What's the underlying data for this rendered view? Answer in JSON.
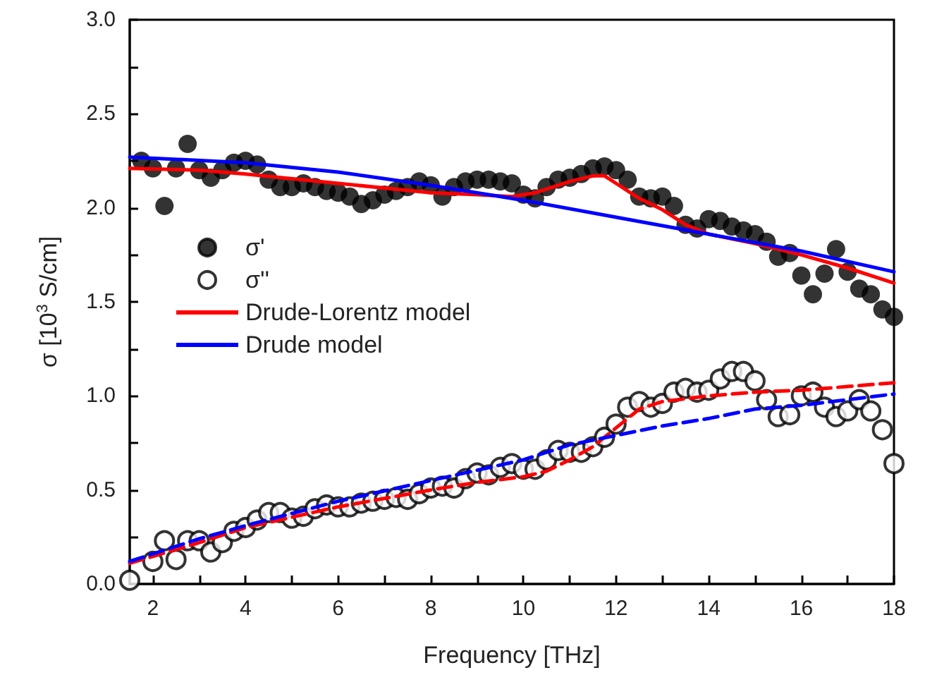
{
  "chart_data": {
    "type": "scatter",
    "xlabel": "Frequency [THz]",
    "ylabel": "σ [10$^{3}$ S/cm]",
    "xlim": [
      1.5,
      18
    ],
    "ylim": [
      0,
      3
    ],
    "xticks": [
      2,
      {
        "value": 3,
        "label": null
      },
      4,
      {
        "value": 5,
        "label": null
      },
      6,
      {
        "value": 7,
        "label": null
      },
      8,
      {
        "value": 9,
        "label": null
      },
      10,
      {
        "value": 11,
        "label": null
      },
      12,
      {
        "value": 13,
        "label": null
      },
      14,
      {
        "value": 15,
        "label": null
      },
      16,
      {
        "value": 17,
        "label": null
      },
      18
    ],
    "yticks": [
      {
        "value": 0,
        "label": "0.0"
      },
      {
        "value": 0.25,
        "label": null
      },
      {
        "value": 0.5,
        "label": "0.5"
      },
      {
        "value": 0.75,
        "label": null
      },
      {
        "value": 1,
        "label": "1.0"
      },
      {
        "value": 1.25,
        "label": null
      },
      {
        "value": 1.5,
        "label": "1.5"
      },
      {
        "value": 1.75,
        "label": null
      },
      {
        "value": 2,
        "label": "2.0"
      },
      {
        "value": 2.25,
        "label": null
      },
      {
        "value": 2.5,
        "label": "2.5"
      },
      {
        "value": 2.75,
        "label": null
      },
      {
        "value": 3,
        "label": "3.0"
      }
    ],
    "grid": false,
    "legend": "center left",
    "series": [
      {
        "name": "σ'",
        "marker": "circle",
        "color": "#000000",
        "x": [
          1.75,
          2,
          2.25,
          2.5,
          2.75,
          3,
          3.25,
          3.5,
          3.75,
          4,
          4.25,
          4.5,
          4.75,
          5,
          5.25,
          5.5,
          5.75,
          6,
          6.25,
          6.5,
          6.75,
          7,
          7.25,
          7.5,
          7.75,
          8,
          8.25,
          8.5,
          8.75,
          9,
          9.25,
          9.5,
          9.75,
          10,
          10.25,
          10.5,
          10.75,
          11,
          11.25,
          11.5,
          11.75,
          12,
          12.25,
          12.5,
          12.75,
          13,
          13.25,
          13.5,
          13.75,
          14,
          14.25,
          14.5,
          14.75,
          15,
          15.25,
          15.5,
          15.75,
          16,
          16.25,
          16.5,
          16.75,
          17,
          17.25,
          17.5,
          17.75,
          18
        ],
        "values": [
          2.25,
          2.21,
          2.01,
          2.21,
          2.34,
          2.2,
          2.16,
          2.2,
          2.24,
          2.25,
          2.23,
          2.15,
          2.11,
          2.11,
          2.13,
          2.11,
          2.09,
          2.08,
          2.06,
          2.02,
          2.04,
          2.07,
          2.09,
          2.11,
          2.14,
          2.12,
          2.06,
          2.11,
          2.14,
          2.15,
          2.15,
          2.14,
          2.13,
          2.07,
          2.05,
          2.11,
          2.15,
          2.16,
          2.18,
          2.21,
          2.22,
          2.2,
          2.15,
          2.06,
          2.05,
          2.06,
          2.01,
          1.91,
          1.89,
          1.94,
          1.93,
          1.9,
          1.88,
          1.86,
          1.82,
          1.74,
          1.76,
          1.64,
          1.54,
          1.65,
          1.78,
          1.66,
          1.57,
          1.54,
          1.46,
          1.42
        ]
      },
      {
        "name": "σ''",
        "marker": "open circle",
        "color": "#000000",
        "x": [
          1.5,
          2,
          2.25,
          2.5,
          2.75,
          3,
          3.25,
          3.5,
          3.75,
          4,
          4.25,
          4.5,
          4.75,
          5,
          5.25,
          5.5,
          5.75,
          6,
          6.25,
          6.5,
          6.75,
          7,
          7.25,
          7.5,
          7.75,
          8,
          8.25,
          8.5,
          8.75,
          9,
          9.25,
          9.5,
          9.75,
          10,
          10.25,
          10.5,
          10.75,
          11,
          11.25,
          11.5,
          11.75,
          12,
          12.25,
          12.5,
          12.75,
          13,
          13.25,
          13.5,
          13.75,
          14,
          14.25,
          14.5,
          14.75,
          15,
          15.25,
          15.5,
          15.75,
          16,
          16.25,
          16.5,
          16.75,
          17,
          17.25,
          17.5,
          17.75,
          18
        ],
        "values": [
          0.02,
          0.12,
          0.23,
          0.13,
          0.23,
          0.23,
          0.17,
          0.22,
          0.28,
          0.3,
          0.34,
          0.38,
          0.38,
          0.35,
          0.36,
          0.4,
          0.42,
          0.41,
          0.41,
          0.43,
          0.44,
          0.45,
          0.46,
          0.45,
          0.48,
          0.51,
          0.52,
          0.51,
          0.56,
          0.59,
          0.58,
          0.62,
          0.64,
          0.61,
          0.61,
          0.66,
          0.71,
          0.7,
          0.7,
          0.73,
          0.78,
          0.85,
          0.94,
          0.97,
          0.94,
          0.96,
          1.02,
          1.04,
          1.02,
          1.03,
          1.09,
          1.13,
          1.13,
          1.08,
          0.98,
          0.89,
          0.9,
          1.0,
          1.02,
          0.94,
          0.89,
          0.92,
          0.98,
          0.92,
          0.82,
          0.64
        ]
      },
      {
        "name": "Drude-Lorentz model",
        "type": "line",
        "marker": "none",
        "line_style": "solid",
        "color": "#ff0000",
        "x": [
          1.5,
          3,
          4,
          6,
          8,
          9,
          9.75,
          10.25,
          11,
          11.5,
          11.75,
          12,
          12.5,
          13,
          13.5,
          14,
          15,
          16,
          17,
          18
        ],
        "values": [
          2.21,
          2.2,
          2.18,
          2.13,
          2.08,
          2.07,
          2.06,
          2.08,
          2.14,
          2.17,
          2.17,
          2.13,
          2.05,
          1.99,
          1.91,
          1.86,
          1.81,
          1.75,
          1.68,
          1.6
        ]
      },
      {
        "name": "Drude model",
        "type": "line",
        "marker": "none",
        "line_style": "solid",
        "color": "#0000ff",
        "x": [
          1.5,
          4,
          6,
          8,
          10,
          12,
          14,
          16,
          18
        ],
        "values": [
          2.27,
          2.24,
          2.19,
          2.12,
          2.04,
          1.95,
          1.86,
          1.77,
          1.66
        ]
      },
      {
        "type": "line",
        "marker": "none",
        "line_style": "dashed",
        "color": "#ff0000",
        "x": [
          1.5,
          3,
          4,
          6,
          8,
          9,
          10,
          10.5,
          11,
          11.5,
          12,
          12.5,
          13,
          14,
          15,
          16,
          17,
          18
        ],
        "values": [
          0.11,
          0.22,
          0.3,
          0.41,
          0.5,
          0.54,
          0.57,
          0.6,
          0.66,
          0.73,
          0.83,
          0.93,
          0.97,
          1.0,
          1.02,
          1.03,
          1.05,
          1.07
        ]
      },
      {
        "type": "line",
        "marker": "none",
        "line_style": "dashed",
        "color": "#0000ff",
        "x": [
          1.5,
          3,
          4,
          6,
          8,
          10,
          11,
          12,
          13,
          14,
          15,
          16,
          17,
          18
        ],
        "values": [
          0.12,
          0.24,
          0.31,
          0.44,
          0.55,
          0.66,
          0.74,
          0.79,
          0.84,
          0.88,
          0.93,
          0.95,
          0.98,
          1.01
        ]
      }
    ]
  }
}
